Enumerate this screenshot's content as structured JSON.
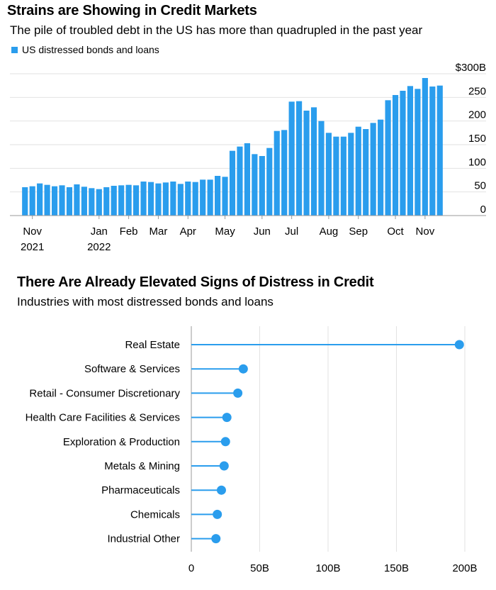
{
  "chart1": {
    "title": "Strains are Showing in Credit Markets",
    "subtitle": "The pile of troubled debt in the US has more than quadrupled in the past year",
    "legend": "US distressed bonds and loans",
    "bar_color": "#2a9ded"
  },
  "chart2": {
    "title": "There Are Already Elevated Signs of Distress in Credit",
    "subtitle": "Industries with most distressed bonds and loans",
    "color": "#2a9ded"
  },
  "chart_data": [
    {
      "type": "bar",
      "title": "Strains are Showing in Credit Markets",
      "subtitle": "The pile of troubled debt in the US has more than quadrupled in the past year",
      "series": [
        {
          "name": "US distressed bonds and loans",
          "values": [
            60,
            62,
            68,
            65,
            62,
            64,
            60,
            66,
            61,
            58,
            56,
            60,
            63,
            64,
            65,
            64,
            72,
            71,
            68,
            70,
            72,
            67,
            72,
            71,
            76,
            76,
            84,
            82,
            137,
            146,
            153,
            130,
            126,
            143,
            179,
            181,
            241,
            242,
            222,
            229,
            200,
            175,
            167,
            167,
            175,
            188,
            183,
            196,
            203,
            244,
            255,
            264,
            274,
            268,
            291,
            273,
            275
          ]
        }
      ],
      "x_labels": [
        {
          "label": "Nov",
          "label2": "2021",
          "index": 1
        },
        {
          "label": "Jan",
          "label2": "2022",
          "index": 10
        },
        {
          "label": "Feb",
          "index": 14
        },
        {
          "label": "Mar",
          "index": 18
        },
        {
          "label": "Apr",
          "index": 22
        },
        {
          "label": "May",
          "index": 27
        },
        {
          "label": "Jun",
          "index": 32
        },
        {
          "label": "Jul",
          "index": 36
        },
        {
          "label": "Aug",
          "index": 41
        },
        {
          "label": "Sep",
          "index": 45
        },
        {
          "label": "Oct",
          "index": 50
        },
        {
          "label": "Nov",
          "index": 54
        }
      ],
      "y_ticks": [
        0,
        50,
        100,
        150,
        200,
        250,
        300
      ],
      "y_tick_labels": [
        "0",
        "50",
        "100",
        "150",
        "200",
        "250",
        "$300B"
      ],
      "ylim": [
        0,
        300
      ],
      "grid": true
    },
    {
      "type": "scatter",
      "title": "There Are Already Elevated Signs of Distress in Credit",
      "subtitle": "Industries with most distressed bonds and loans",
      "categories": [
        "Real Estate",
        "Software & Services",
        "Retail - Consumer Discretionary",
        "Health Care Facilities & Services",
        "Exploration & Production",
        "Metals & Mining",
        "Pharmaceuticals",
        "Chemicals",
        "Industrial Other"
      ],
      "values": [
        196,
        38,
        34,
        26,
        25,
        24,
        22,
        19,
        18
      ],
      "x_ticks": [
        0,
        50,
        100,
        150,
        200
      ],
      "x_tick_labels": [
        "0",
        "50B",
        "100B",
        "150B",
        "200B"
      ],
      "xlim": [
        0,
        200
      ]
    }
  ]
}
